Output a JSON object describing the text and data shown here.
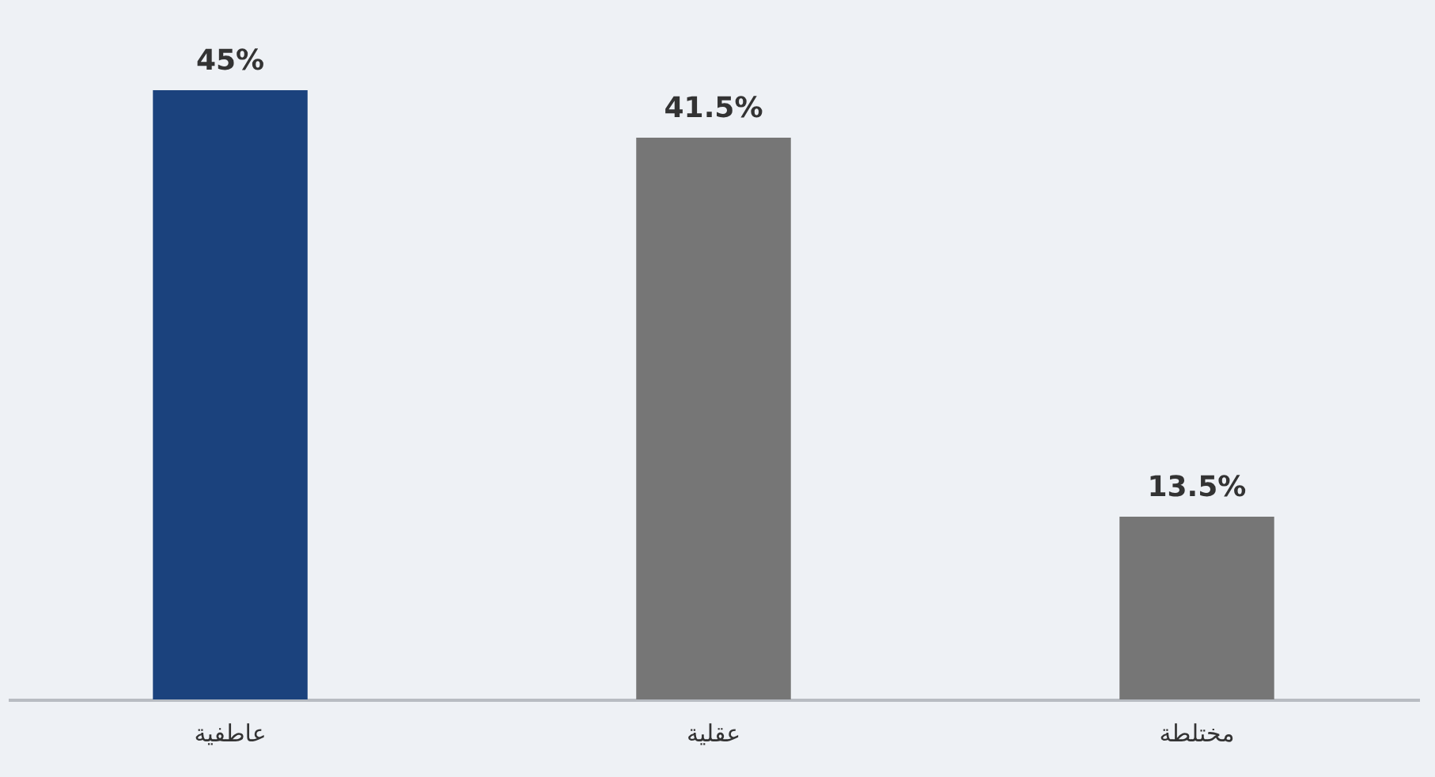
{
  "chart_data": {
    "type": "bar",
    "categories": [
      "عاطفية",
      "عقلية",
      "مختلطة"
    ],
    "values": [
      45,
      41.5,
      13.5
    ],
    "colors": [
      "#1b427d",
      "#767676",
      "#767676"
    ],
    "value_labels": [
      "45%",
      "41.5%",
      "13.5%"
    ],
    "grid": false
  }
}
